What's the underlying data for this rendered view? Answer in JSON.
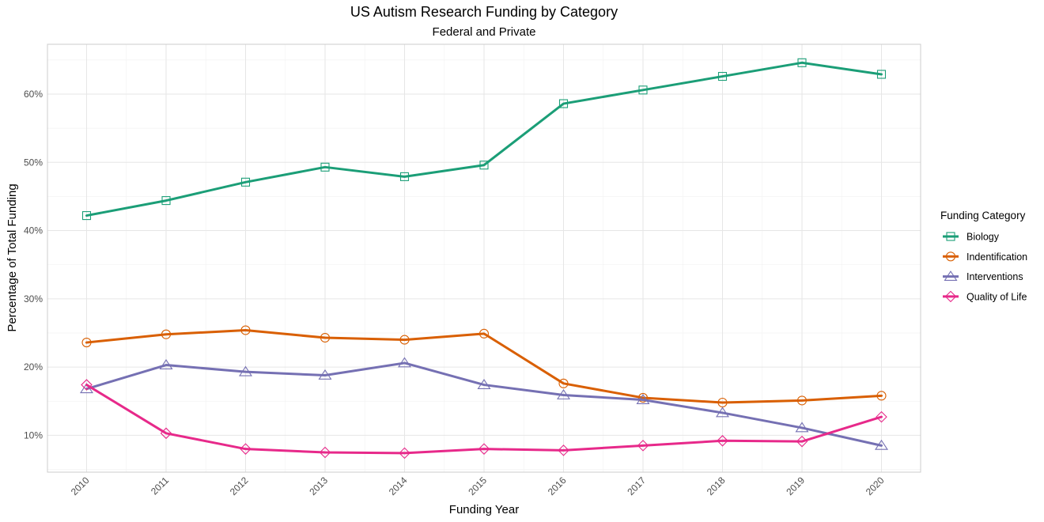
{
  "chart_data": {
    "type": "line",
    "title": "US Autism Research Funding by Category",
    "subtitle": "Federal and Private",
    "xlabel": "Funding Year",
    "ylabel": "Percentage of Total Funding",
    "x": [
      "2010",
      "2011",
      "2012",
      "2013",
      "2014",
      "2015",
      "2016",
      "2017",
      "2018",
      "2019",
      "2020"
    ],
    "ylim": [
      4.6,
      67.3
    ],
    "yticks": [
      10,
      20,
      30,
      40,
      50,
      60
    ],
    "ytick_labels": [
      "10%",
      "20%",
      "30%",
      "40%",
      "50%",
      "60%"
    ],
    "grid": true,
    "legend_position": "right",
    "legend_title": "Funding Category",
    "series": [
      {
        "name": "Biology",
        "color": "#1b9e77",
        "marker": "square",
        "values": [
          42.2,
          44.4,
          47.1,
          49.3,
          47.9,
          49.6,
          58.6,
          60.6,
          62.6,
          64.6,
          62.9
        ]
      },
      {
        "name": "Indentification",
        "color": "#d95f02",
        "marker": "circle",
        "values": [
          23.6,
          24.8,
          25.4,
          24.3,
          24.0,
          24.9,
          17.6,
          15.5,
          14.8,
          15.1,
          15.8
        ]
      },
      {
        "name": "Interventions",
        "color": "#7570b3",
        "marker": "triangle",
        "values": [
          16.8,
          20.3,
          19.3,
          18.8,
          20.6,
          17.4,
          15.9,
          15.2,
          13.3,
          11.1,
          8.5
        ]
      },
      {
        "name": "Quality of Life",
        "color": "#e7298a",
        "marker": "diamond",
        "values": [
          17.4,
          10.3,
          8.0,
          7.5,
          7.4,
          8.0,
          7.8,
          8.5,
          9.2,
          9.1,
          12.7
        ]
      }
    ]
  }
}
